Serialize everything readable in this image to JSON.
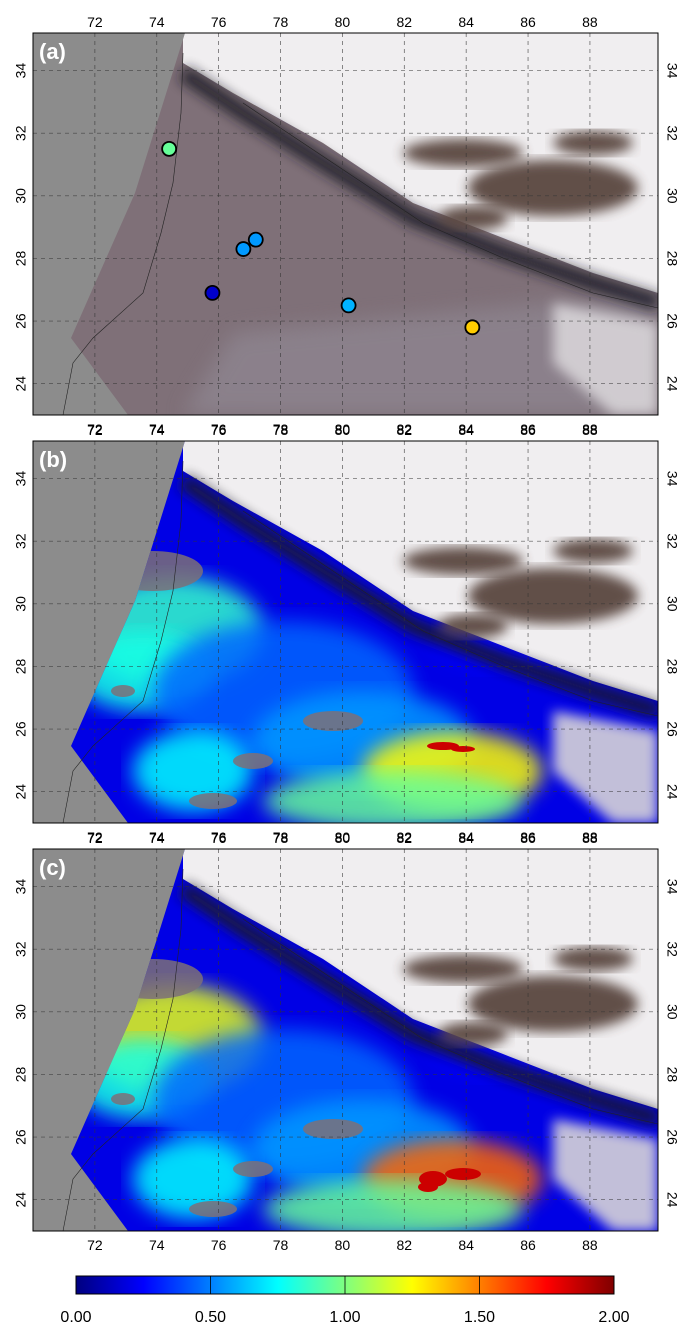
{
  "panels": [
    {
      "label": "(a)",
      "layer": "true-color",
      "points": [
        {
          "lon": 74.4,
          "lat": 31.5,
          "value": 0.95
        },
        {
          "lon": 77.2,
          "lat": 28.6,
          "value": 0.55
        },
        {
          "lon": 76.8,
          "lat": 28.3,
          "value": 0.55
        },
        {
          "lon": 75.8,
          "lat": 26.9,
          "value": 0.15
        },
        {
          "lon": 80.2,
          "lat": 26.5,
          "value": 0.6
        },
        {
          "lon": 84.2,
          "lat": 25.8,
          "value": 1.35
        }
      ]
    },
    {
      "label": "(b)",
      "layer": "aod"
    },
    {
      "label": "(c)",
      "layer": "aod"
    }
  ],
  "axes": {
    "x_ticks": [
      "72",
      "74",
      "76",
      "78",
      "80",
      "82",
      "84",
      "86",
      "88"
    ],
    "x_values": [
      72,
      74,
      76,
      78,
      80,
      82,
      84,
      86,
      88
    ],
    "y_ticks": [
      "24",
      "26",
      "28",
      "30",
      "32",
      "34"
    ],
    "y_values": [
      24,
      26,
      28,
      30,
      32,
      34
    ],
    "lon_range": [
      70.0,
      90.2
    ],
    "lat_range": [
      23.0,
      35.2
    ]
  },
  "colorbar": {
    "tick_labels": [
      "0.00",
      "0.50",
      "1.00",
      "1.50",
      "2.00"
    ],
    "range": [
      0,
      2
    ],
    "colormap": [
      "#00007f",
      "#0000ff",
      "#007fff",
      "#00ffff",
      "#7fff7f",
      "#ffff00",
      "#ff7f00",
      "#ff0000",
      "#7f0000"
    ]
  },
  "colors": {
    "outside_swath": "#8c8c8c",
    "haze": "#7f7078",
    "cloud": "#f0eef0",
    "dark_ground": "#5a4640"
  }
}
